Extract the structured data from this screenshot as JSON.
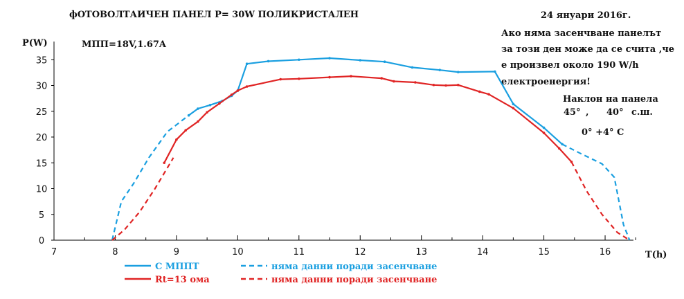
{
  "title": "фОТОВОЛТАИЧЕН ПАНЕЛ   P= 30W   ПОЛИКРИСТАЛЕН",
  "date": "24 януари 2016г.",
  "mpp_label": "МПП=18V,1.67A",
  "note_lines": [
    "Ако няма засенчване панелът",
    "за този ден може да се счита ,че",
    "е произвел около 190 W/h",
    "електроенергия!"
  ],
  "tilt_line1": "Наклон на панела",
  "tilt_angle": "45°",
  "tilt_lat": "40°",
  "tilt_unit": "с.ш.",
  "temperature": "0° +4°  C",
  "colors": {
    "mppt": "#1a9fe0",
    "resistor": "#e02424",
    "axis": "#000000"
  },
  "chart_data": {
    "type": "line",
    "xlabel": "T(h)",
    "ylabel": "P(W)",
    "xlim": [
      7,
      16.8
    ],
    "ylim": [
      0,
      35
    ],
    "x_ticks": [
      7,
      8,
      9,
      10,
      11,
      12,
      13,
      14,
      15,
      16
    ],
    "y_ticks": [
      0,
      5,
      10,
      15,
      20,
      25,
      30,
      35
    ],
    "grid": false,
    "legend": [
      {
        "label": "С МППТ",
        "color": "#1a9fe0",
        "style": "solid"
      },
      {
        "label": "няма данни поради засенчване",
        "color": "#1a9fe0",
        "style": "dashed"
      },
      {
        "label": "Rt=13 ома",
        "color": "#e02424",
        "style": "solid"
      },
      {
        "label": "няма данни поради засенчване",
        "color": "#e02424",
        "style": "dashed"
      }
    ],
    "series": [
      {
        "name": "С МППТ",
        "color": "#1a9fe0",
        "segments": [
          {
            "style": "dashed",
            "points": [
              [
                7.95,
                0
              ],
              [
                8.1,
                7.5
              ],
              [
                8.3,
                11
              ],
              [
                8.55,
                16
              ],
              [
                8.85,
                21
              ],
              [
                9.2,
                24.2
              ]
            ]
          },
          {
            "style": "solid",
            "points": [
              [
                9.2,
                24.2
              ],
              [
                9.35,
                25.5
              ],
              [
                9.55,
                26.2
              ],
              [
                9.75,
                27
              ],
              [
                9.9,
                28
              ],
              [
                10.0,
                29
              ],
              [
                10.15,
                34.2
              ],
              [
                10.5,
                34.7
              ],
              [
                11.0,
                35
              ],
              [
                11.5,
                35.3
              ],
              [
                12.0,
                34.9
              ],
              [
                12.4,
                34.6
              ],
              [
                12.85,
                33.5
              ],
              [
                13.3,
                33
              ],
              [
                13.6,
                32.6
              ],
              [
                14.2,
                32.7
              ],
              [
                14.5,
                26.4
              ],
              [
                15.0,
                21.8
              ],
              [
                15.3,
                18.6
              ]
            ]
          },
          {
            "style": "dashed",
            "points": [
              [
                15.3,
                18.6
              ],
              [
                15.6,
                16.8
              ],
              [
                15.95,
                14.8
              ],
              [
                16.15,
                12.2
              ],
              [
                16.3,
                3
              ],
              [
                16.4,
                0
              ]
            ]
          }
        ]
      },
      {
        "name": "Rt=13 ома",
        "color": "#e02424",
        "segments": [
          {
            "style": "dashed",
            "points": [
              [
                7.95,
                0
              ],
              [
                8.15,
                2
              ],
              [
                8.4,
                5.5
              ],
              [
                8.65,
                10
              ],
              [
                8.95,
                16
              ]
            ]
          },
          {
            "style": "solid",
            "points": [
              [
                8.8,
                15
              ],
              [
                9.0,
                19.5
              ],
              [
                9.15,
                21.3
              ],
              [
                9.35,
                23
              ],
              [
                9.5,
                24.8
              ],
              [
                9.7,
                26.5
              ],
              [
                9.9,
                28.2
              ],
              [
                10.0,
                29
              ],
              [
                10.15,
                29.8
              ],
              [
                10.7,
                31.2
              ],
              [
                11.0,
                31.3
              ],
              [
                11.5,
                31.6
              ],
              [
                11.85,
                31.8
              ],
              [
                12.35,
                31.4
              ],
              [
                12.55,
                30.8
              ],
              [
                12.9,
                30.6
              ],
              [
                13.2,
                30.1
              ],
              [
                13.4,
                30
              ],
              [
                13.6,
                30.1
              ],
              [
                13.95,
                28.8
              ],
              [
                14.1,
                28.3
              ],
              [
                14.5,
                25.6
              ],
              [
                15.0,
                20.8
              ],
              [
                15.25,
                17.8
              ],
              [
                15.45,
                15.2
              ]
            ]
          },
          {
            "style": "dashed",
            "points": [
              [
                15.45,
                15.2
              ],
              [
                15.7,
                9.5
              ],
              [
                15.95,
                5
              ],
              [
                16.2,
                1.5
              ],
              [
                16.4,
                0
              ]
            ]
          }
        ]
      }
    ]
  }
}
